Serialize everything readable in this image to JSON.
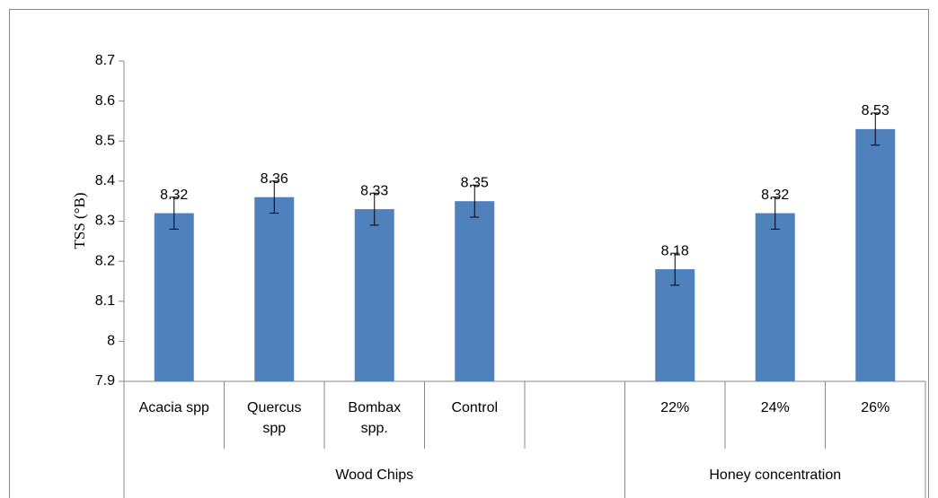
{
  "chart_data": {
    "type": "bar",
    "y_label": "TSS (°B)",
    "categories": [
      "Acacia spp",
      "Quercus\nspp",
      "Bombax\nspp.",
      "Control",
      null,
      "22%",
      "24%",
      "26%"
    ],
    "values": [
      8.32,
      8.36,
      8.33,
      8.35,
      null,
      8.18,
      8.32,
      8.53
    ],
    "errors": [
      0.04,
      0.04,
      0.04,
      0.04,
      null,
      0.04,
      0.04,
      0.04
    ],
    "groups": [
      {
        "name": "Wood Chips",
        "count": 5
      },
      {
        "name": "Honey concentration",
        "count": 3
      }
    ],
    "color": "#4f81bd",
    "ylim": [
      7.9,
      8.7
    ],
    "yticks": [
      7.9,
      8,
      8.1,
      8.2,
      8.3,
      8.4,
      8.5,
      8.6,
      8.7
    ],
    "grid": false
  }
}
